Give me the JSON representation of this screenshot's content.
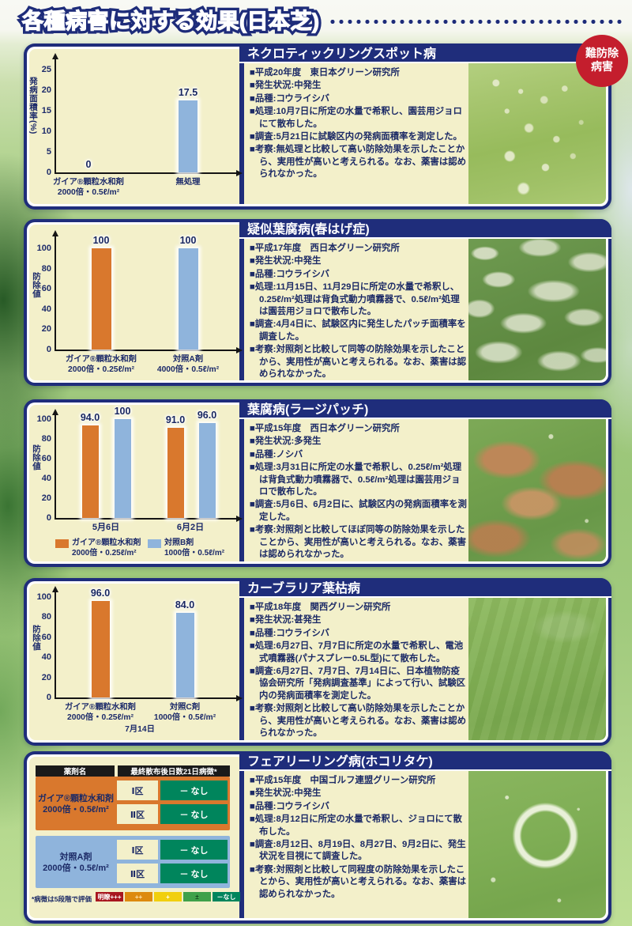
{
  "colors": {
    "navy": "#1f2d7b",
    "cream": "#f3f0ca",
    "orange": "#d9782d",
    "bar_blue": "#8fb4dc",
    "badge_red": "#c41e2d",
    "table_green": "#00855c"
  },
  "page_title": "各種病害に対する効果(日本芝)",
  "badge": {
    "line1": "難防除",
    "line2": "病害"
  },
  "panels": [
    {
      "title": "ネクロティックリングスポット病",
      "notes": [
        "■平成20年度　東日本グリーン研究所",
        "■発生状況:中発生",
        "■品種:コウライシバ",
        "■処理:10月7日に所定の水量で希釈し、園芸用ジョロにて散布した。",
        "■調査:5月21日に試験区内の発病面積率を測定した。",
        "■考察:無処理と比較して高い防除効果を示したことから、実用性が高いと考えられる。なお、薬害は認められなかった。"
      ]
    },
    {
      "title": "疑似葉腐病(春はげ症)",
      "notes": [
        "■平成17年度　西日本グリーン研究所",
        "■発生状況:中発生",
        "■品種:コウライシバ",
        "■処理:11月15日、11月29日に所定の水量で希釈し、0.25ℓ/m²処理は背負式動力噴霧器で、0.5ℓ/m²処理は園芸用ジョロで散布した。",
        "■調査:4月4日に、試験区内に発生したパッチ面積率を調査した。",
        "■考察:対照剤と比較して同等の防除効果を示したことから、実用性が高いと考えられる。なお、薬害は認められなかった。"
      ]
    },
    {
      "title": "葉腐病(ラージパッチ)",
      "notes": [
        "■平成15年度　西日本グリーン研究所",
        "■発生状況:多発生",
        "■品種:ノシバ",
        "■処理:3月31日に所定の水量で希釈し、0.25ℓ/m²処理は背負式動力噴霧器で、0.5ℓ/m²処理は園芸用ジョロで散布した。",
        "■調査:5月6日、6月2日に、試験区内の発病面積率を測定した。",
        "■考察:対照剤と比較してほぼ同等の防除効果を示したことから、実用性が高いと考えられる。なお、薬害は認められなかった。"
      ]
    },
    {
      "title": "カーブラリア葉枯病",
      "notes": [
        "■平成18年度　関西グリーン研究所",
        "■発生状況:甚発生",
        "■品種:コウライシバ",
        "■処理:6月27日、7月7日に所定の水量で希釈し、電池式噴霧器(パナスプレー0.5L型)にて散布した。",
        "■調査:6月27日、7月7日、7月14日に、日本植物防疫協会研究所「発病調査基準」によって行い、試験区内の発病面積率を測定した。",
        "■考察:対照剤と比較して高い防除効果を示したことから、実用性が高いと考えられる。なお、薬害は認められなかった。"
      ]
    },
    {
      "title": "フェアリーリング病(ホコリタケ)",
      "notes": [
        "■平成15年度　中国ゴルフ連盟グリーン研究所",
        "■発生状況:中発生",
        "■品種:コウライシバ",
        "■処理:8月12日に所定の水量で希釈し、ジョロにて散布した。",
        "■調査:8月12日、8月19日、8月27日、9月2日に、発生状況を目視にて調査した。",
        "■考察:対照剤と比較して同程度の防除効果を示したことから、実用性が高いと考えられる。なお、薬害は認められなかった。"
      ]
    }
  ],
  "chart_data": [
    {
      "type": "bar",
      "title": "ネクロティックリングスポット病",
      "ylabel": "発病面積率(%)",
      "ylim": [
        0,
        25
      ],
      "yticks": [
        0,
        5,
        10,
        15,
        20,
        25
      ],
      "bars": [
        {
          "category": [
            "ガイア®顆粒水和剤",
            "2000倍・0.5ℓ/m²"
          ],
          "value": 0,
          "label": "0",
          "color": "none"
        },
        {
          "category": [
            "無処理"
          ],
          "value": 17.5,
          "label": "17.5",
          "color": "blue"
        }
      ]
    },
    {
      "type": "bar",
      "title": "疑似葉腐病(春はげ症)",
      "ylabel": "防除値",
      "ylim": [
        0,
        100
      ],
      "yticks": [
        0,
        20,
        40,
        60,
        80,
        100
      ],
      "bars": [
        {
          "category": [
            "ガイア®顆粒水和剤",
            "2000倍・0.25ℓ/m²"
          ],
          "value": 100,
          "label": "100",
          "color": "orange"
        },
        {
          "category": [
            "対照A剤",
            "4000倍・0.5ℓ/m²"
          ],
          "value": 100,
          "label": "100",
          "color": "blue"
        }
      ]
    },
    {
      "type": "bar",
      "title": "葉腐病(ラージパッチ)",
      "ylabel": "防除値",
      "ylim": [
        0,
        100
      ],
      "yticks": [
        0,
        20,
        40,
        60,
        80,
        100
      ],
      "groups": [
        "5月6日",
        "6月2日"
      ],
      "series": [
        {
          "name": [
            "ガイア®顆粒水和剤",
            "2000倍・0.25ℓ/m²"
          ],
          "color": "orange",
          "values": [
            94,
            91
          ],
          "labels": [
            "94.0",
            "91.0"
          ]
        },
        {
          "name": [
            "対照B剤",
            "1000倍・0.5ℓ/m²"
          ],
          "color": "blue",
          "values": [
            100,
            96
          ],
          "labels": [
            "100",
            "96.0"
          ]
        }
      ],
      "legend_position": "bottom"
    },
    {
      "type": "bar",
      "title": "カーブラリア葉枯病",
      "ylabel": "防除値",
      "ylim": [
        0,
        100
      ],
      "yticks": [
        0,
        20,
        40,
        60,
        80,
        100
      ],
      "bars": [
        {
          "category": [
            "ガイア®顆粒水和剤",
            "2000倍・0.25ℓ/m²"
          ],
          "value": 96,
          "label": "96.0",
          "color": "orange"
        },
        {
          "category": [
            "対照C剤",
            "1000倍・0.5ℓ/m²"
          ],
          "value": 84,
          "label": "84.0",
          "color": "blue"
        }
      ],
      "extra_xlabel": "7月14日"
    },
    {
      "type": "table",
      "title": "フェアリーリング病(ホコリタケ)",
      "headers": [
        "薬剤名",
        "最終散布後日数21日病徴*"
      ],
      "rows": [
        {
          "agent": [
            "ガイア®顆粒水和剤",
            "2000倍・0.5ℓ/m²"
          ],
          "color": "orange",
          "plots": [
            {
              "plot": "Ⅰ区",
              "result": "－ なし"
            },
            {
              "plot": "Ⅱ区",
              "result": "－ なし"
            }
          ]
        },
        {
          "agent": [
            "対照A剤",
            "2000倍・0.5ℓ/m²"
          ],
          "color": "blue",
          "plots": [
            {
              "plot": "Ⅰ区",
              "result": "－ なし"
            },
            {
              "plot": "Ⅱ区",
              "result": "－ なし"
            }
          ]
        }
      ],
      "footnote": "*病徴は5段階で評価",
      "scale": [
        {
          "label": "明瞭+++",
          "color": "#a8161f",
          "text_color": "#ffffff"
        },
        {
          "label": "++",
          "color": "#dd8a0f",
          "text_color": "#ffe3ad"
        },
        {
          "label": "+",
          "color": "#f1cf0e",
          "text_color": "#ffffff"
        },
        {
          "label": "±",
          "color": "#3fa14a",
          "text_color": "#14441d"
        },
        {
          "label": "－なし",
          "color": "#00855c",
          "text_color": "#ffffff"
        }
      ]
    }
  ]
}
